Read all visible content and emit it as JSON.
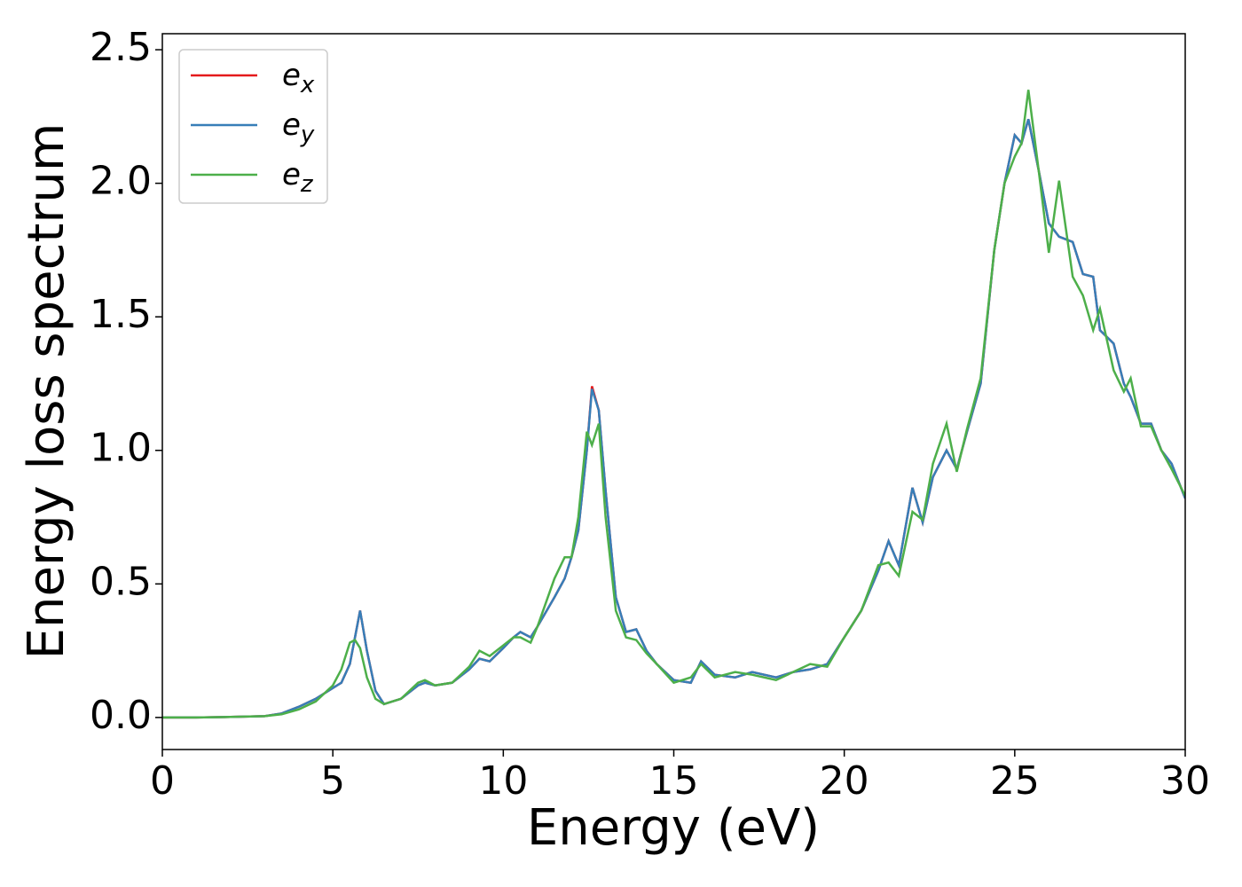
{
  "chart_data": {
    "type": "line",
    "xlabel": "Energy (eV)",
    "ylabel": "Energy loss spectrum",
    "x": [
      0,
      1,
      2,
      3,
      3.5,
      4,
      4.5,
      5,
      5.25,
      5.5,
      5.65,
      5.8,
      6.0,
      6.25,
      6.5,
      7,
      7.5,
      7.7,
      8,
      8.5,
      9,
      9.3,
      9.6,
      10,
      10.3,
      10.5,
      10.8,
      11,
      11.5,
      11.8,
      12,
      12.2,
      12.45,
      12.6,
      12.8,
      13,
      13.3,
      13.6,
      13.9,
      14.2,
      14.5,
      15,
      15.5,
      15.8,
      16.2,
      16.8,
      17.3,
      18,
      18.5,
      19,
      19.5,
      20,
      20.5,
      21,
      21.3,
      21.6,
      22,
      22.3,
      22.6,
      23,
      23.3,
      23.6,
      24,
      24.4,
      24.7,
      25,
      25.2,
      25.4,
      25.7,
      26,
      26.3,
      26.7,
      27,
      27.3,
      27.5,
      27.9,
      28.2,
      28.4,
      28.7,
      29,
      29.3,
      29.6,
      30
    ],
    "series": [
      {
        "name": "ex",
        "color": "#e41a1c",
        "values": [
          0,
          0,
          0.002,
          0.005,
          0.015,
          0.04,
          0.07,
          0.11,
          0.13,
          0.2,
          0.3,
          0.4,
          0.25,
          0.1,
          0.05,
          0.07,
          0.12,
          0.13,
          0.12,
          0.13,
          0.18,
          0.22,
          0.21,
          0.26,
          0.3,
          0.32,
          0.3,
          0.34,
          0.45,
          0.52,
          0.6,
          0.7,
          1.0,
          1.24,
          1.15,
          0.85,
          0.45,
          0.32,
          0.33,
          0.25,
          0.2,
          0.14,
          0.13,
          0.21,
          0.16,
          0.15,
          0.17,
          0.15,
          0.17,
          0.18,
          0.2,
          0.3,
          0.4,
          0.55,
          0.66,
          0.57,
          0.86,
          0.73,
          0.9,
          1.0,
          0.93,
          1.07,
          1.25,
          1.75,
          2.0,
          2.18,
          2.15,
          2.24,
          2.05,
          1.85,
          1.8,
          1.78,
          1.66,
          1.65,
          1.45,
          1.4,
          1.25,
          1.2,
          1.1,
          1.1,
          1.0,
          0.95,
          0.82
        ]
      },
      {
        "name": "ey",
        "color": "#377eb8",
        "values": [
          0,
          0,
          0.002,
          0.005,
          0.015,
          0.04,
          0.07,
          0.11,
          0.13,
          0.2,
          0.3,
          0.4,
          0.25,
          0.1,
          0.05,
          0.07,
          0.12,
          0.13,
          0.12,
          0.13,
          0.18,
          0.22,
          0.21,
          0.26,
          0.3,
          0.32,
          0.3,
          0.34,
          0.45,
          0.52,
          0.6,
          0.7,
          1.0,
          1.23,
          1.15,
          0.85,
          0.45,
          0.32,
          0.33,
          0.25,
          0.2,
          0.14,
          0.13,
          0.21,
          0.16,
          0.15,
          0.17,
          0.15,
          0.17,
          0.18,
          0.2,
          0.3,
          0.4,
          0.55,
          0.66,
          0.57,
          0.86,
          0.73,
          0.9,
          1.0,
          0.93,
          1.07,
          1.25,
          1.75,
          2.0,
          2.18,
          2.15,
          2.24,
          2.05,
          1.85,
          1.8,
          1.78,
          1.66,
          1.65,
          1.45,
          1.4,
          1.25,
          1.2,
          1.1,
          1.1,
          1.0,
          0.95,
          0.82
        ]
      },
      {
        "name": "ez",
        "color": "#4daf4a",
        "values": [
          0,
          0,
          0.002,
          0.005,
          0.012,
          0.03,
          0.06,
          0.12,
          0.18,
          0.28,
          0.29,
          0.26,
          0.15,
          0.07,
          0.05,
          0.07,
          0.13,
          0.14,
          0.12,
          0.13,
          0.19,
          0.25,
          0.23,
          0.27,
          0.3,
          0.3,
          0.28,
          0.34,
          0.52,
          0.6,
          0.6,
          0.75,
          1.07,
          1.02,
          1.1,
          0.75,
          0.4,
          0.3,
          0.29,
          0.24,
          0.2,
          0.13,
          0.15,
          0.2,
          0.15,
          0.17,
          0.16,
          0.14,
          0.17,
          0.2,
          0.19,
          0.3,
          0.4,
          0.57,
          0.58,
          0.53,
          0.77,
          0.74,
          0.95,
          1.1,
          0.92,
          1.08,
          1.27,
          1.75,
          2.0,
          2.1,
          2.15,
          2.35,
          2.05,
          1.74,
          2.01,
          1.65,
          1.58,
          1.45,
          1.53,
          1.3,
          1.22,
          1.27,
          1.09,
          1.09,
          1.0,
          0.93,
          0.83
        ]
      }
    ],
    "xlim": [
      0,
      30
    ],
    "xticks": [
      0,
      5,
      10,
      15,
      20,
      25,
      30
    ],
    "ylim": [
      -0.12,
      2.56
    ],
    "yticks": [
      {
        "value": 0,
        "label": "0.0"
      },
      0.5,
      {
        "value": 1,
        "label": "1.0"
      },
      1.5,
      {
        "value": 2,
        "label": "2.0"
      },
      2.5
    ],
    "legend": "upper left",
    "grid": false
  }
}
